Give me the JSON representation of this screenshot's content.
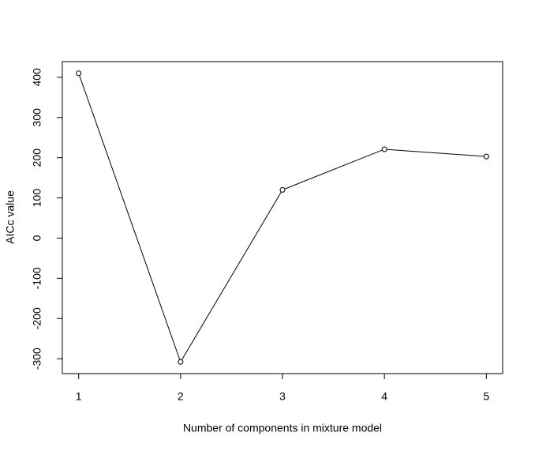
{
  "chart_data": {
    "type": "line",
    "x_label": "Number of components in mixture model",
    "y_label": "AICc value",
    "x": [
      1,
      2,
      3,
      4,
      5
    ],
    "values": [
      410,
      -308,
      120,
      221,
      203
    ],
    "color": "#000000",
    "marker": "open-circle",
    "xlim": [
      0.84,
      5.16
    ],
    "xticks": [
      1,
      2,
      3,
      4,
      5
    ],
    "ylim": [
      -337,
      439
    ],
    "yticks": [
      -300,
      -200,
      -100,
      0,
      100,
      200,
      300,
      400
    ],
    "grid": false
  }
}
